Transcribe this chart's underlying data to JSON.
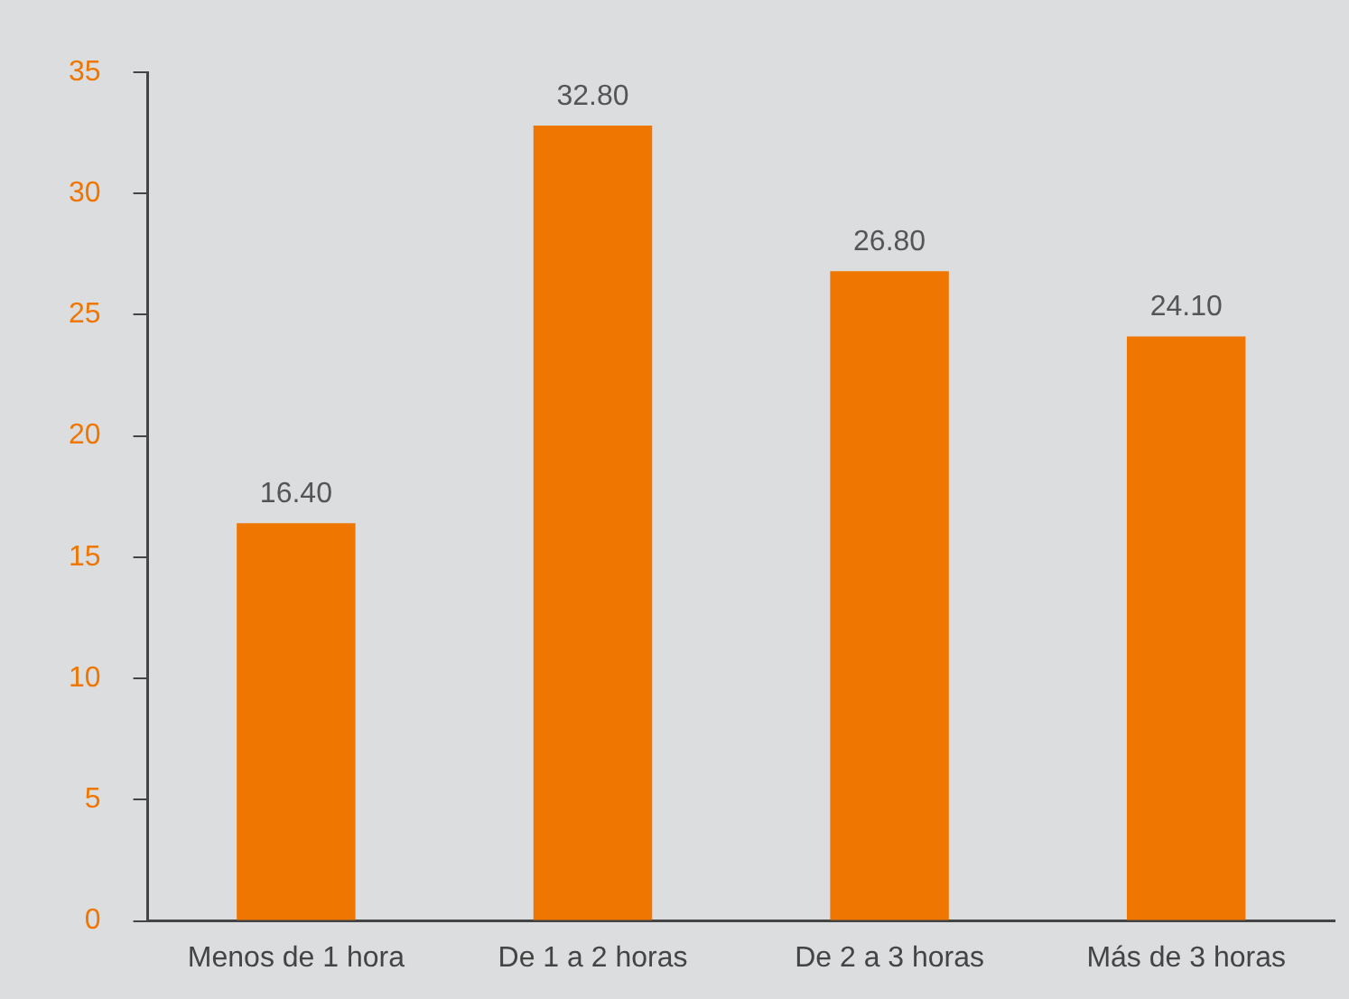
{
  "chart_data": {
    "type": "bar",
    "categories": [
      "Menos de 1 hora",
      "De 1 a 2 horas",
      "De 2 a 3 horas",
      "Más de 3 horas"
    ],
    "values": [
      16.4,
      32.8,
      26.8,
      24.1
    ],
    "value_labels": [
      "16.40",
      "32.80",
      "26.80",
      "24.10"
    ],
    "color": "#ee7601",
    "ylim": [
      0,
      35
    ],
    "yticks": [
      0,
      5,
      10,
      15,
      20,
      25,
      30,
      35
    ],
    "grid": false,
    "legend": false
  }
}
